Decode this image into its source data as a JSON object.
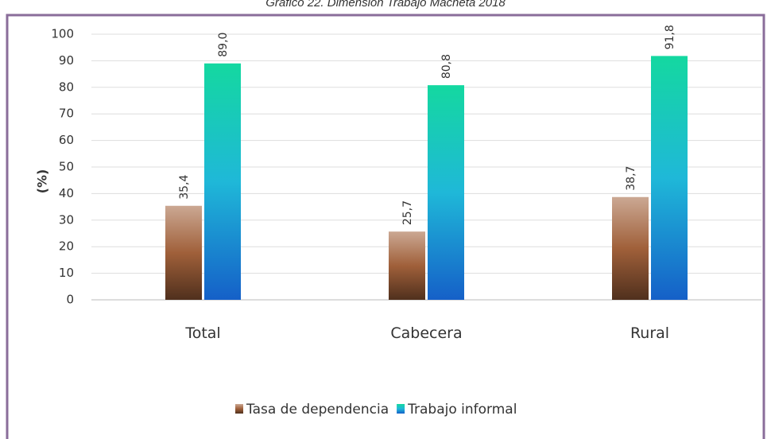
{
  "chart_data": {
    "type": "bar",
    "title": "Gráfico 22. Dimensión Trabajo Machetá 2018",
    "y_label": "(%)",
    "categories": [
      "Total",
      "Cabecera",
      "Rural"
    ],
    "series": [
      {
        "name": "Tasa de dependencia",
        "color": "#a0603a",
        "values": [
          35.4,
          25.7,
          38.7
        ],
        "value_labels": [
          "35,4",
          "25,7",
          "38,7"
        ]
      },
      {
        "name": "Trabajo informal",
        "color": "#1fb8d8",
        "values": [
          89.0,
          80.8,
          91.8
        ],
        "value_labels": [
          "89,0",
          "80,8",
          "91,8"
        ]
      }
    ],
    "ylim": [
      0,
      100
    ],
    "yticks": [
      0,
      10,
      20,
      30,
      40,
      50,
      60,
      70,
      80,
      90,
      100
    ],
    "grid": true,
    "legend": "bottom"
  }
}
